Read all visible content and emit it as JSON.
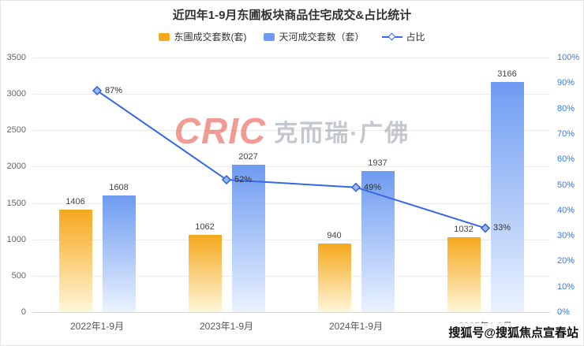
{
  "title": "近四年1-9月东圃板块商品住宅成交&占比统计",
  "legend": [
    {
      "label": "东圃成交套数(套)",
      "color": "#F5A81C",
      "color_light": "#FFF6D9"
    },
    {
      "label": "天河成交套数（套）",
      "color": "#6E9BF1",
      "color_light": "#EAF2FF"
    },
    {
      "label": "占比",
      "color": "#3567E6"
    }
  ],
  "watermark": {
    "logo": "CRIC",
    "text": "克而瑞·广佛"
  },
  "footer": "搜狐号@搜狐焦点宣春站",
  "chart_data": {
    "type": "bar",
    "subtype": "bar+line combo, dual axis",
    "categories": [
      "2022年1-9月",
      "2023年1-9月",
      "2024年1-9月",
      "2025年1-9月"
    ],
    "series": [
      {
        "name": "东圃成交套数(套)",
        "type": "bar",
        "axis": "left",
        "values": [
          1406,
          1062,
          940,
          1032
        ]
      },
      {
        "name": "天河成交套数（套）",
        "type": "bar",
        "axis": "left",
        "values": [
          1608,
          2027,
          1937,
          3166
        ]
      },
      {
        "name": "占比",
        "type": "line",
        "axis": "right",
        "values": [
          87,
          52,
          49,
          33
        ],
        "unit": "%"
      }
    ],
    "left_axis": {
      "min": 0,
      "max": 3500,
      "step": 500,
      "color": "#666666"
    },
    "right_axis": {
      "min": 0,
      "max": 100,
      "step": 10,
      "suffix": "%",
      "color": "#2F7BF6"
    },
    "marker": {
      "fill": "#9DB9F5",
      "stroke": "#2E5FD8"
    },
    "grid": true,
    "legend_position": "top"
  }
}
